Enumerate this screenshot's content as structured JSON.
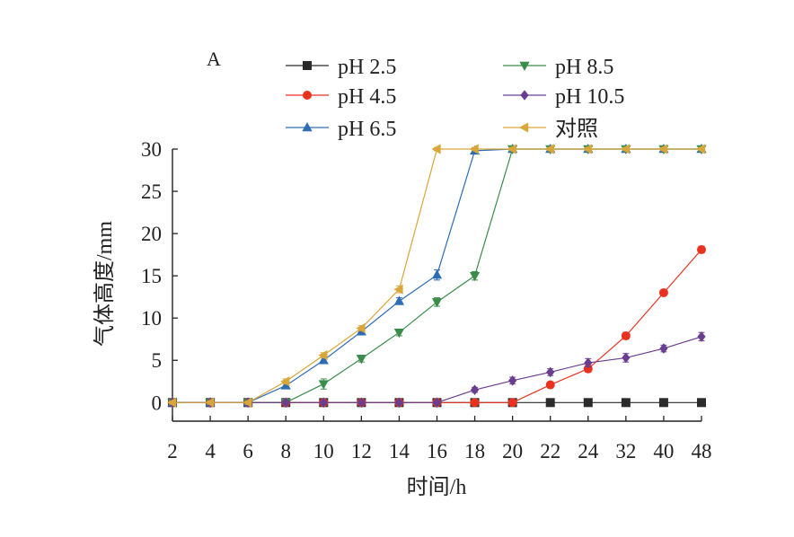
{
  "chart_data": {
    "type": "line",
    "panel_label": "A",
    "title": "",
    "xlabel": "时间/h",
    "ylabel": "气体高度/mm",
    "categories": [
      "2",
      "4",
      "6",
      "8",
      "10",
      "12",
      "14",
      "16",
      "18",
      "20",
      "22",
      "24",
      "32",
      "40",
      "48"
    ],
    "yticks": [
      0,
      5,
      10,
      15,
      20,
      25,
      30
    ],
    "ylim": [
      -2.2,
      30
    ],
    "grid": false,
    "legend_position": "top",
    "series": [
      {
        "name": "pH 2.5",
        "color": "#2b2b2b",
        "marker": "square",
        "values": [
          0,
          0,
          0,
          0,
          0,
          0,
          0,
          0,
          0,
          0,
          0,
          0,
          0,
          0,
          0
        ],
        "errors": [
          0.2,
          0.2,
          0.2,
          0.2,
          0.2,
          0.2,
          0.2,
          0.2,
          0.2,
          0.2,
          0.2,
          0.2,
          0.2,
          0.2,
          0.2
        ]
      },
      {
        "name": "pH 4.5",
        "color": "#e8321f",
        "marker": "circle",
        "values": [
          0,
          0,
          0,
          0,
          0,
          0,
          0,
          0,
          0,
          0,
          2.1,
          4.0,
          7.9,
          13.0,
          18.1
        ],
        "errors": [
          0.2,
          0.2,
          0.2,
          0.2,
          0.2,
          0.2,
          0.2,
          0.2,
          0.2,
          0.2,
          0.3,
          0.4,
          0.4,
          0.3,
          0.4
        ]
      },
      {
        "name": "pH 6.5",
        "color": "#2e6db4",
        "marker": "triangle-up",
        "values": [
          0,
          0,
          0,
          2.0,
          5.0,
          8.4,
          12.0,
          15.1,
          29.8,
          30,
          30,
          30,
          30,
          30,
          30
        ],
        "errors": [
          0.2,
          0.2,
          0.2,
          0.3,
          0.4,
          0.4,
          0.4,
          0.6,
          0.3,
          0.2,
          0.2,
          0.2,
          0.2,
          0.2,
          0.2
        ]
      },
      {
        "name": "pH 8.5",
        "color": "#3a8c4a",
        "marker": "triangle-down",
        "values": [
          0,
          0,
          0,
          0,
          2.2,
          5.2,
          8.3,
          11.9,
          15.0,
          30,
          30,
          30,
          30,
          30,
          30
        ],
        "errors": [
          0.2,
          0.2,
          0.2,
          0.2,
          0.6,
          0.4,
          0.4,
          0.5,
          0.5,
          0.2,
          0.2,
          0.2,
          0.2,
          0.2,
          0.2
        ]
      },
      {
        "name": "pH 10.5",
        "color": "#6a3d8f",
        "marker": "diamond",
        "values": [
          0,
          0,
          0,
          0,
          0,
          0,
          0,
          0,
          1.5,
          2.6,
          3.6,
          4.7,
          5.3,
          6.4,
          7.8
        ],
        "errors": [
          0.2,
          0.2,
          0.2,
          0.2,
          0.2,
          0.2,
          0.2,
          0.2,
          0.3,
          0.4,
          0.4,
          0.5,
          0.5,
          0.4,
          0.5
        ]
      },
      {
        "name": "对照",
        "color": "#d9a63a",
        "marker": "triangle-left",
        "values": [
          0,
          0,
          0,
          2.5,
          5.6,
          8.8,
          13.4,
          30,
          30,
          30,
          30,
          30,
          30,
          30,
          30
        ],
        "errors": [
          0.2,
          0.2,
          0.2,
          0.3,
          0.3,
          0.3,
          0.4,
          0.2,
          0.2,
          0.2,
          0.2,
          0.2,
          0.2,
          0.2,
          0.2
        ]
      }
    ]
  }
}
